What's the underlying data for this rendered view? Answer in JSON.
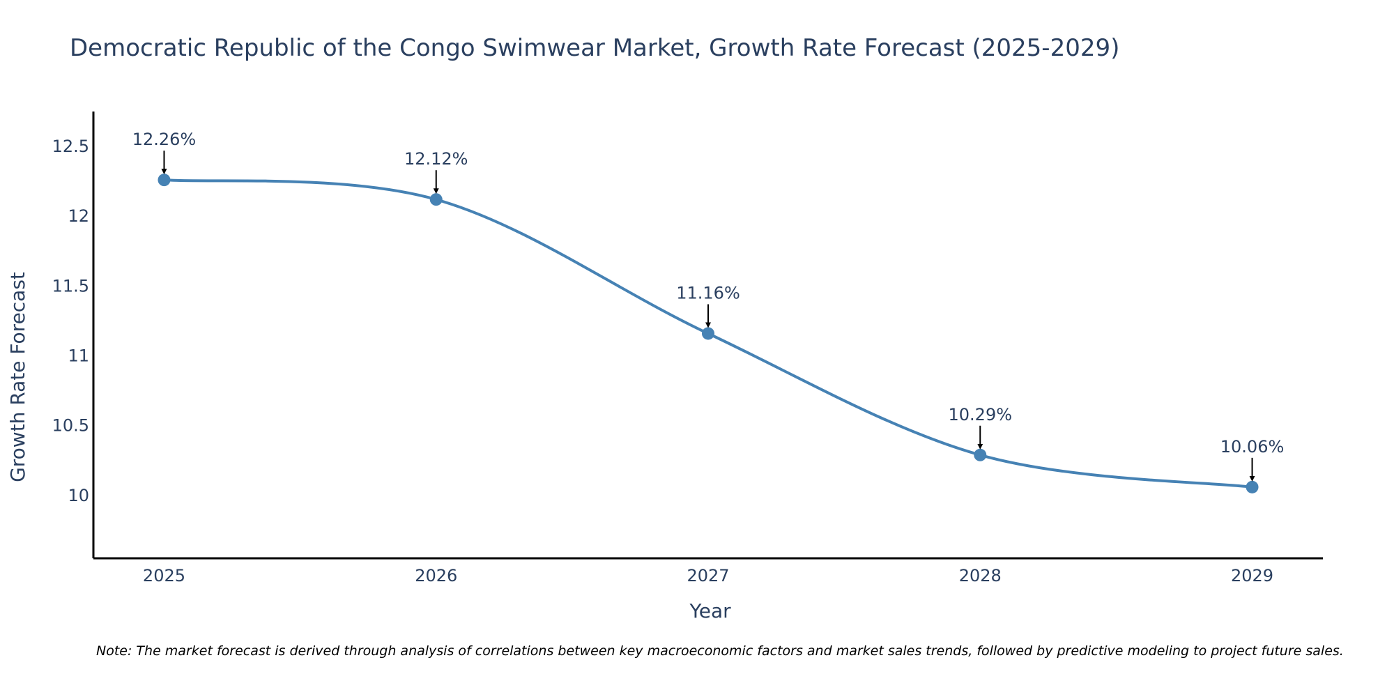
{
  "colors": {
    "line": "#4682b4",
    "text": "#2a3f5f",
    "axis": "#000000",
    "arrow": "#000000"
  },
  "chart_data": {
    "type": "line",
    "title": "Democratic Republic of the Congo Swimwear Market, Growth Rate Forecast (2025-2029)",
    "xlabel": "Year",
    "ylabel": "Growth Rate Forecast",
    "x": [
      2025,
      2026,
      2027,
      2028,
      2029
    ],
    "values": [
      12.26,
      12.12,
      11.16,
      10.29,
      10.06
    ],
    "data_labels": [
      "12.26%",
      "12.12%",
      "11.16%",
      "10.29%",
      "10.06%"
    ],
    "x_tick_labels": [
      "2025",
      "2026",
      "2027",
      "2028",
      "2029"
    ],
    "y_ticks": [
      10,
      10.5,
      11,
      11.5,
      12,
      12.5
    ],
    "y_tick_labels": [
      "10",
      "10.5",
      "11",
      "11.5",
      "12",
      "12.5"
    ],
    "xlim": [
      2024.74,
      2029.26
    ],
    "ylim": [
      9.55,
      12.75
    ],
    "grid": false,
    "note": "Note: The market forecast is derived through analysis of correlations between key macroeconomic factors and market sales trends, followed by predictive modeling to project future sales."
  }
}
